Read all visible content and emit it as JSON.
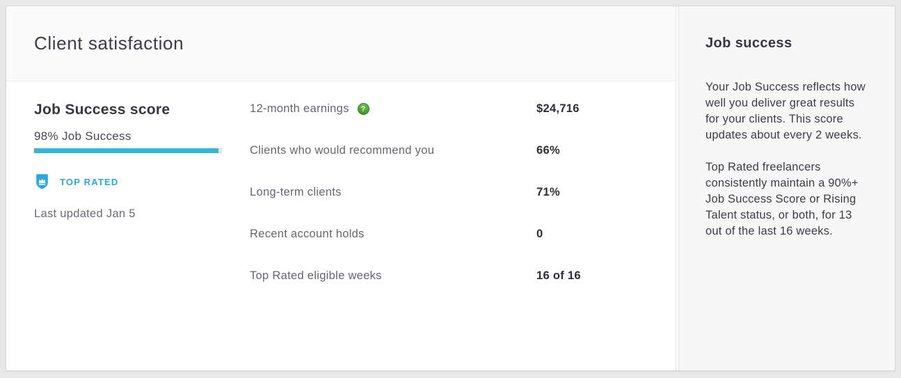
{
  "header": {
    "title": "Client satisfaction"
  },
  "score_card": {
    "title": "Job Success score",
    "score_label": "98% Job Success",
    "score_percent": 98,
    "bar_color": "#35b5d9",
    "badge_label": "TOP RATED",
    "badge_color": "#29a8df",
    "last_updated": "Last updated Jan 5"
  },
  "stats": {
    "0": {
      "label": "12-month earnings",
      "value": "$24,716"
    },
    "1": {
      "label": "Clients who would recommend you",
      "value": "66%"
    },
    "2": {
      "label": "Long-term clients",
      "value": "71%"
    },
    "3": {
      "label": "Recent account holds",
      "value": "0"
    },
    "4": {
      "label": "Top Rated eligible weeks",
      "value": "16 of 16"
    }
  },
  "icons": {
    "help": "?",
    "help_name": "help-question-icon",
    "shield_name": "top-rated-shield-icon"
  },
  "aside": {
    "title": "Job success",
    "paragraphs": {
      "0": "Your Job Success reflects how well you deliver great results for your clients. This score updates about every 2 weeks.",
      "1": "Top Rated freelancers consistently maintain a 90%+ Job Success Score or Rising Talent status, or both, for 13 out of the last 16 weeks."
    }
  }
}
